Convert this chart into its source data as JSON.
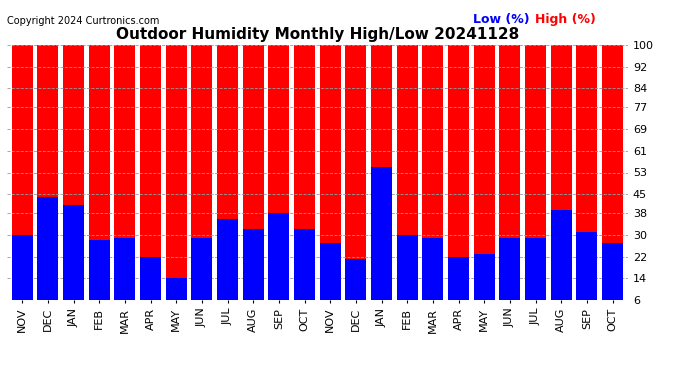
{
  "title": "Outdoor Humidity Monthly High/Low 20241128",
  "copyright": "Copyright 2024 Curtronics.com",
  "legend_low": "Low (%)",
  "legend_high": "High (%)",
  "months": [
    "NOV",
    "DEC",
    "JAN",
    "FEB",
    "MAR",
    "APR",
    "MAY",
    "JUN",
    "JUL",
    "AUG",
    "SEP",
    "OCT",
    "NOV",
    "DEC",
    "JAN",
    "FEB",
    "MAR",
    "APR",
    "MAY",
    "JUN",
    "JUL",
    "AUG",
    "SEP",
    "OCT"
  ],
  "high_values": [
    100,
    100,
    100,
    100,
    100,
    100,
    100,
    100,
    100,
    100,
    100,
    100,
    100,
    100,
    100,
    100,
    100,
    100,
    100,
    100,
    100,
    100,
    100,
    100
  ],
  "low_values": [
    30,
    44,
    41,
    28,
    29,
    22,
    14,
    29,
    36,
    32,
    38,
    32,
    27,
    21,
    55,
    30,
    29,
    22,
    23,
    29,
    29,
    39,
    31,
    27
  ],
  "yticks": [
    6,
    14,
    22,
    30,
    38,
    45,
    53,
    61,
    69,
    77,
    84,
    92,
    100
  ],
  "ymin": 6,
  "ymax": 100,
  "high_color": "#ff0000",
  "low_color": "#0000ff",
  "bg_color": "#ffffff",
  "grid_color": "#999999",
  "title_fontsize": 11,
  "tick_fontsize": 8,
  "copyright_fontsize": 7,
  "legend_fontsize": 9,
  "legend_low_color": "#0000ff",
  "legend_high_color": "#ff0000"
}
